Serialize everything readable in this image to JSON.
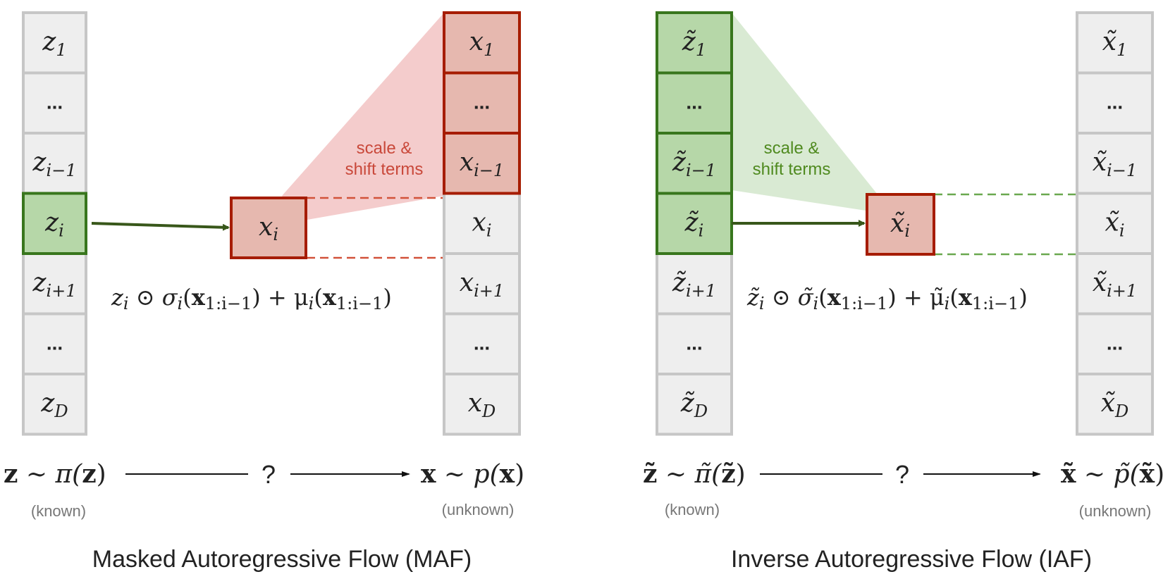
{
  "maf": {
    "z_cells": [
      "z",
      "...",
      "z",
      "z",
      "z",
      "...",
      "z"
    ],
    "z_subs": [
      "1",
      "",
      "i−1",
      "i",
      "i+1",
      "",
      "D"
    ],
    "x_cells": [
      "x",
      "...",
      "x",
      "x",
      "x",
      "...",
      "x"
    ],
    "x_subs": [
      "1",
      "",
      "i−1",
      "i",
      "i+1",
      "",
      "D"
    ],
    "center_var": "x",
    "center_sub": "i",
    "annotation_line1": "scale &",
    "annotation_line2": "shift terms",
    "formula_z": "z",
    "formula_z_sub": "i",
    "formula_rest": "⊙ σ",
    "formula_sigma_sub": "i",
    "formula_open1": "(",
    "formula_bold1": "x",
    "formula_bold1_sub": "1:i−1",
    "formula_plus": ") + μ",
    "formula_mu_sub": "i",
    "formula_open2": "(",
    "formula_bold2": "x",
    "formula_bold2_sub": "1:i−1",
    "formula_close": ")",
    "left_expr_bold": "z",
    "left_expr_rest": "∼ π(",
    "left_expr_bold2": "z",
    "left_expr_close": ")",
    "question": "?",
    "right_expr_bold": "x",
    "right_expr_rest": "∼ p(",
    "right_expr_bold2": "x",
    "right_expr_close": ")",
    "known": "(known)",
    "unknown": "(unknown)",
    "title": "Masked Autoregressive Flow (MAF)"
  },
  "iaf": {
    "z_cells": [
      "z̃",
      "...",
      "z̃",
      "z̃",
      "z̃",
      "...",
      "z̃"
    ],
    "z_subs": [
      "1",
      "",
      "i−1",
      "i",
      "i+1",
      "",
      "D"
    ],
    "x_cells": [
      "x̃",
      "...",
      "x̃",
      "x̃",
      "x̃",
      "...",
      "x̃"
    ],
    "x_subs": [
      "1",
      "",
      "i−1",
      "i",
      "i+1",
      "",
      "D"
    ],
    "center_var": "x̃",
    "center_sub": "i",
    "annotation_line1": "scale &",
    "annotation_line2": "shift terms",
    "formula_z": "z̃",
    "formula_z_sub": "i",
    "formula_rest": "⊙ σ̃",
    "formula_sigma_sub": "i",
    "formula_open1": "(",
    "formula_bold1": "x",
    "formula_bold1_sub": "1:i−1",
    "formula_plus": ") + μ̃",
    "formula_mu_sub": "i",
    "formula_open2": "(",
    "formula_bold2": "x",
    "formula_bold2_sub": "1:i−1",
    "formula_close": ")",
    "left_expr_bold": "z̃",
    "left_expr_rest": "∼ π̃(",
    "left_expr_bold2": "z̃",
    "left_expr_close": ")",
    "question": "?",
    "right_expr_bold": "x̃",
    "right_expr_rest": "∼ p̃(",
    "right_expr_bold2": "x̃",
    "right_expr_close": ")",
    "known": "(known)",
    "unknown": "(unknown)",
    "title": "Inverse Autoregressive Flow (IAF)"
  },
  "colors": {
    "cell_gray": "#eeeeee",
    "cell_gray_border": "#c6c6c6",
    "green_fill": "#b6d7a8",
    "green_border": "#38761d",
    "red_fill": "#e6b8af",
    "red_border": "#a61c00",
    "red_cone": "#f4cccc",
    "green_cone": "#d9ead3",
    "red_dash": "#d2523a",
    "green_dash": "#6aa84f",
    "arrow_green": "#38571a"
  }
}
